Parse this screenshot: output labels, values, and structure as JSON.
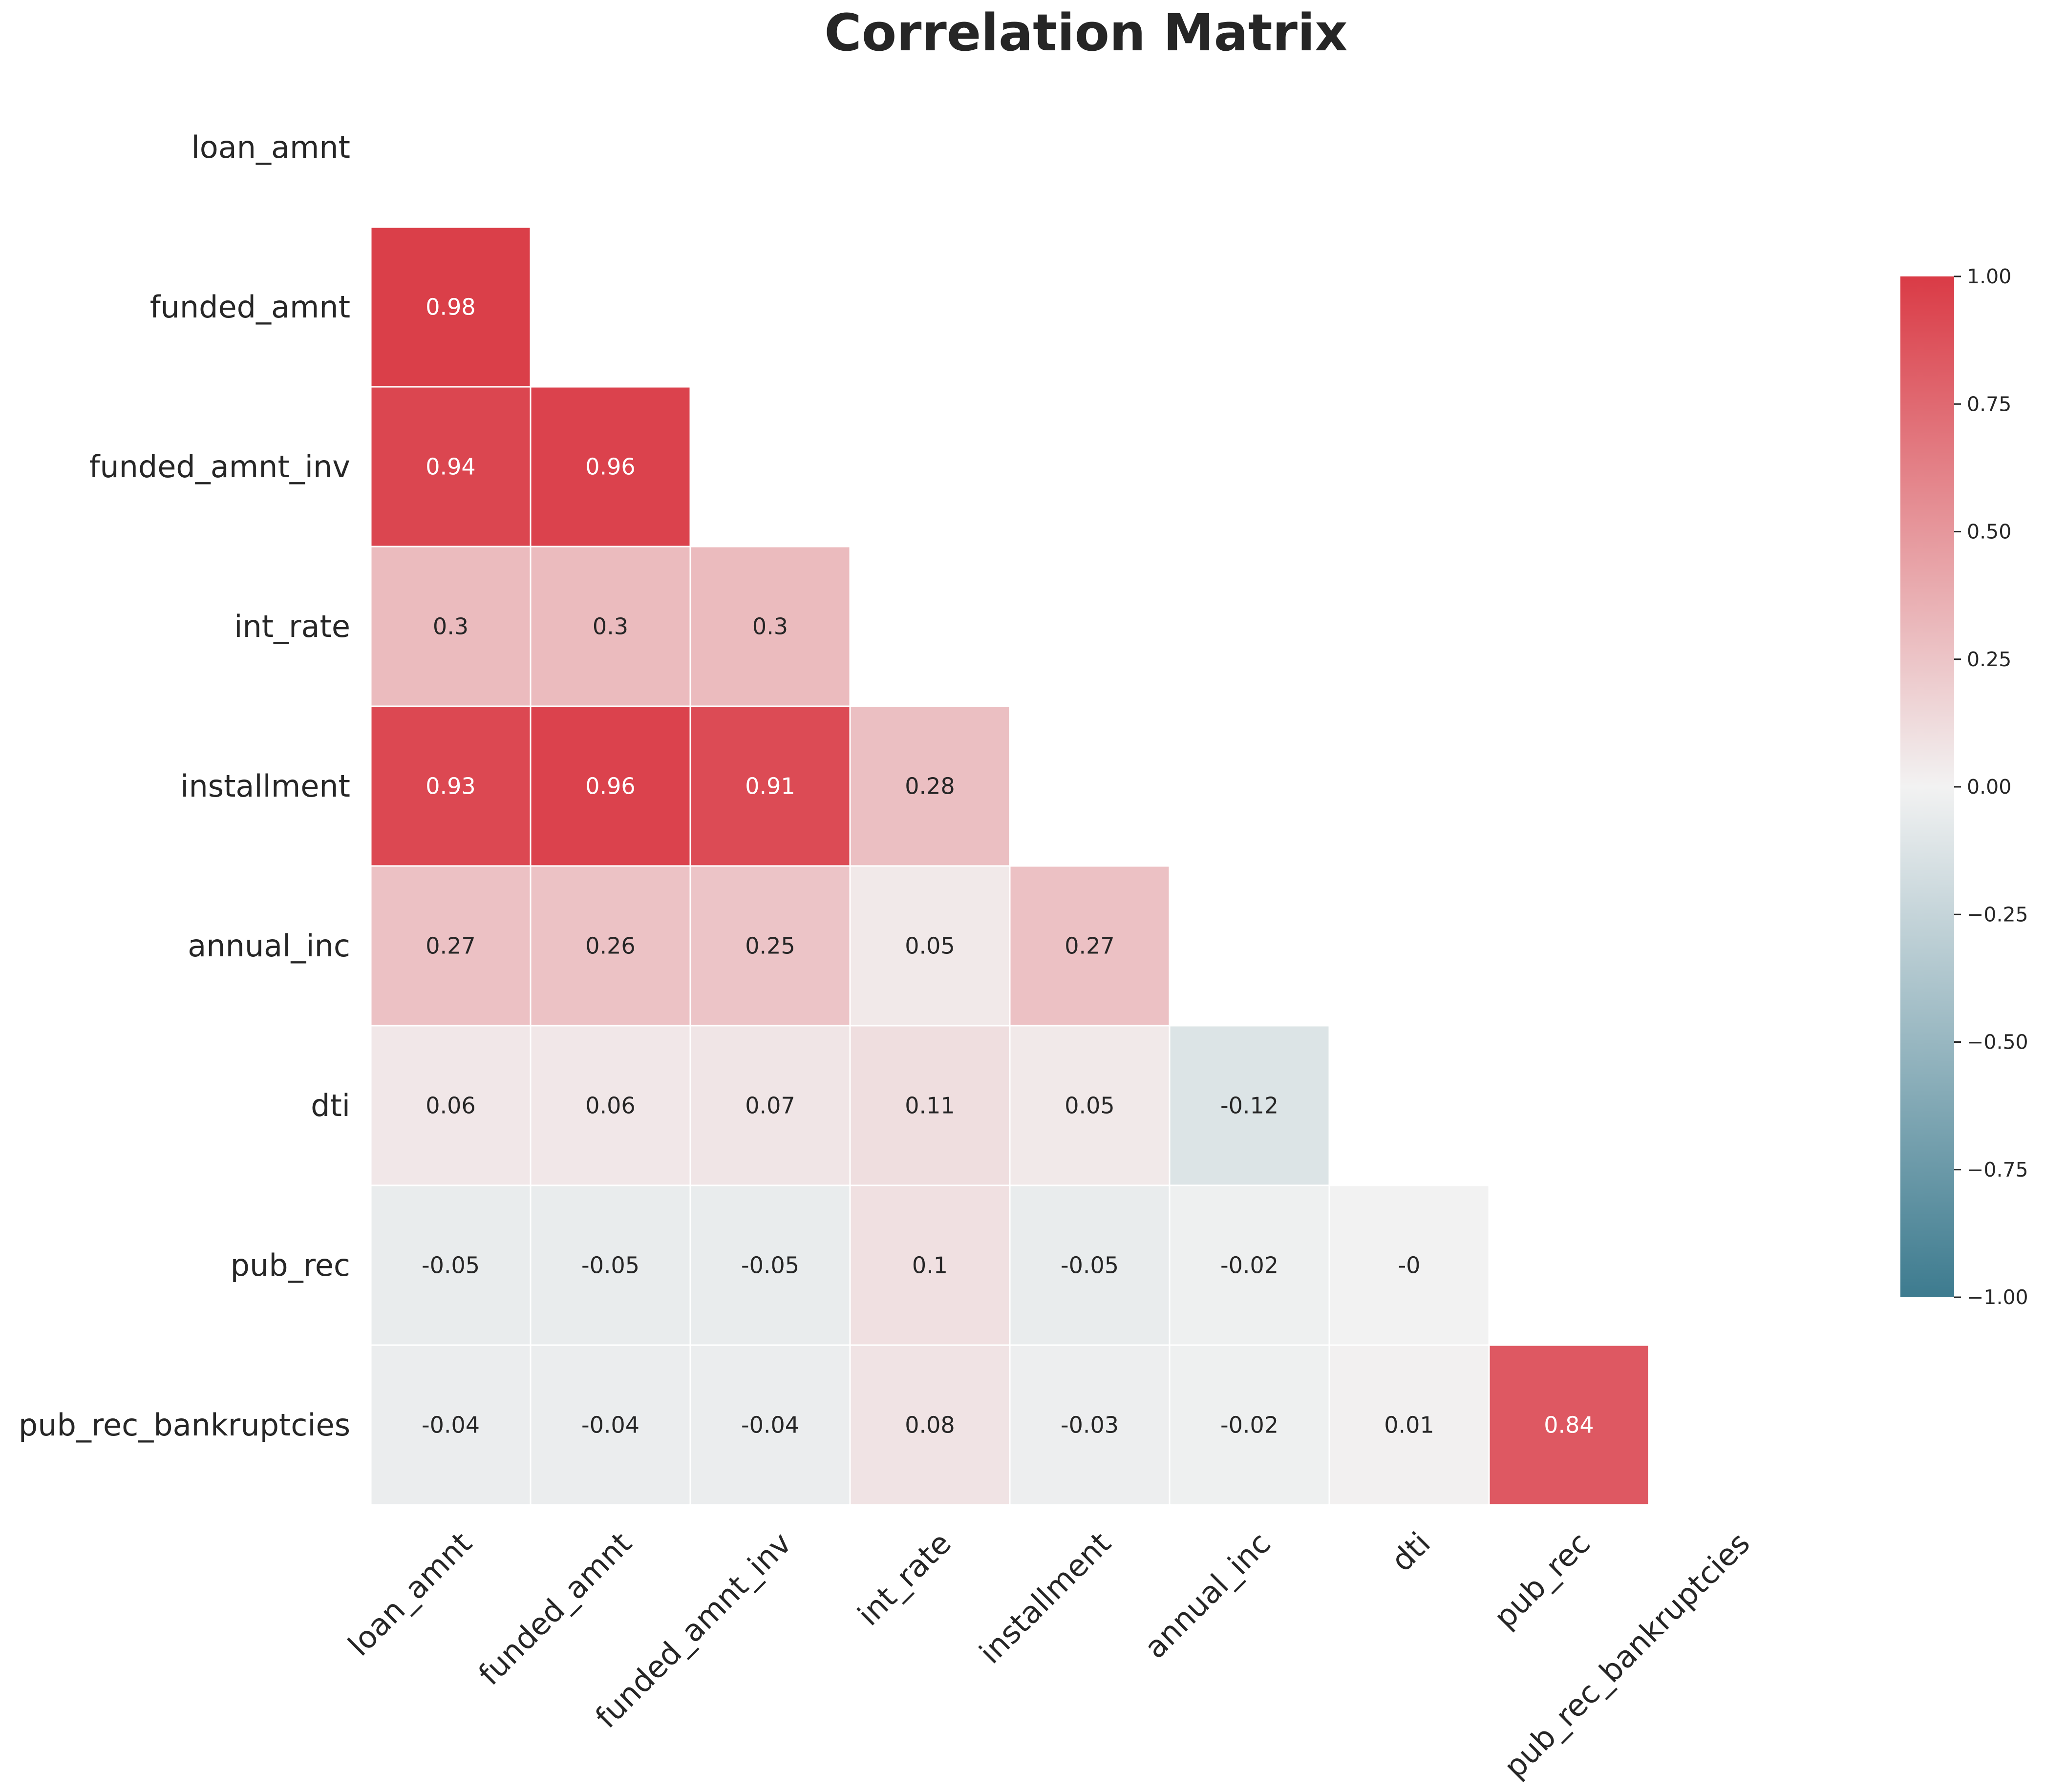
{
  "chart_data": {
    "type": "heatmap",
    "title": "Correlation Matrix",
    "variables": [
      "loan_amnt",
      "funded_amnt",
      "funded_amnt_inv",
      "int_rate",
      "installment",
      "annual_inc",
      "dti",
      "pub_rec",
      "pub_rec_bankruptcies"
    ],
    "mask": "upper-triangle-including-diagonal",
    "values": [
      [
        null,
        null,
        null,
        null,
        null,
        null,
        null,
        null,
        null
      ],
      [
        0.98,
        null,
        null,
        null,
        null,
        null,
        null,
        null,
        null
      ],
      [
        0.94,
        0.96,
        null,
        null,
        null,
        null,
        null,
        null,
        null
      ],
      [
        0.3,
        0.3,
        0.3,
        null,
        null,
        null,
        null,
        null,
        null
      ],
      [
        0.93,
        0.96,
        0.91,
        0.28,
        null,
        null,
        null,
        null,
        null
      ],
      [
        0.27,
        0.26,
        0.25,
        0.05,
        0.27,
        null,
        null,
        null,
        null
      ],
      [
        0.06,
        0.06,
        0.07,
        0.11,
        0.05,
        -0.12,
        null,
        null,
        null
      ],
      [
        -0.05,
        -0.05,
        -0.05,
        0.1,
        -0.05,
        -0.02,
        0,
        null,
        null
      ],
      [
        -0.04,
        -0.04,
        -0.04,
        0.08,
        -0.03,
        -0.02,
        0.01,
        0.84,
        null
      ]
    ],
    "labels": [
      [
        null,
        null,
        null,
        null,
        null,
        null,
        null,
        null,
        null
      ],
      [
        "0.98",
        null,
        null,
        null,
        null,
        null,
        null,
        null,
        null
      ],
      [
        "0.94",
        "0.96",
        null,
        null,
        null,
        null,
        null,
        null,
        null
      ],
      [
        "0.3",
        "0.3",
        "0.3",
        null,
        null,
        null,
        null,
        null,
        null
      ],
      [
        "0.93",
        "0.96",
        "0.91",
        "0.28",
        null,
        null,
        null,
        null,
        null
      ],
      [
        "0.27",
        "0.26",
        "0.25",
        "0.05",
        "0.27",
        null,
        null,
        null,
        null
      ],
      [
        "0.06",
        "0.06",
        "0.07",
        "0.11",
        "0.05",
        "-0.12",
        null,
        null,
        null
      ],
      [
        "-0.05",
        "-0.05",
        "-0.05",
        "0.1",
        "-0.05",
        "-0.02",
        "-0",
        null,
        null
      ],
      [
        "-0.04",
        "-0.04",
        "-0.04",
        "0.08",
        "-0.03",
        "-0.02",
        "0.01",
        "0.84",
        null
      ]
    ],
    "colorbar": {
      "range": [
        -1.0,
        1.0
      ],
      "ticks": [
        1.0,
        0.75,
        0.5,
        0.25,
        0.0,
        -0.25,
        -0.5,
        -0.75,
        -1.0
      ],
      "tick_labels": [
        "1.00",
        "0.75",
        "0.50",
        "0.25",
        "0.00",
        "−0.25",
        "−0.50",
        "−0.75",
        "−1.00"
      ],
      "colors": {
        "negative": "#3d7b8f",
        "neutral": "#f2f2f2",
        "positive": "#da3b46"
      }
    },
    "grid": false
  }
}
